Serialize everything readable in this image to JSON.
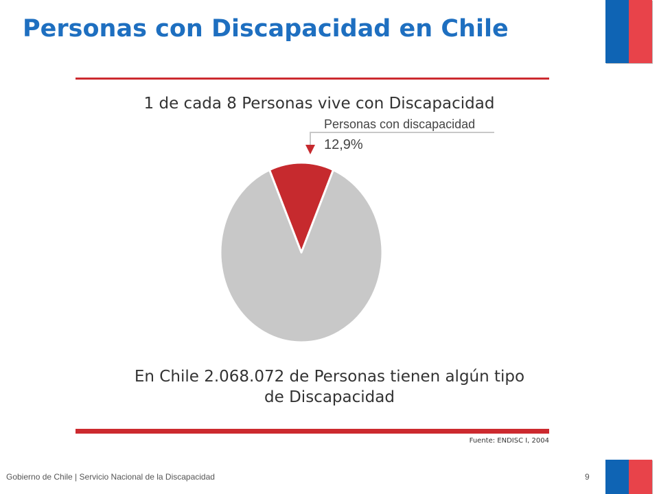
{
  "slide": {
    "title": "Personas con Discapacidad en Chile",
    "subtitle": "1 de cada 8 Personas vive con Discapacidad",
    "statement_line1": "En Chile 2.068.072 de Personas  tienen algún tipo",
    "statement_line2": "de Discapacidad",
    "source": "Fuente: ENDISC I, 2004",
    "footer": "Gobierno de Chile | Servicio Nacional de la Discapacidad",
    "page_number": "9"
  },
  "colors": {
    "title": "#1e6fc0",
    "accent_red": "#cc2a2f",
    "flag_blue": "#0f64b4",
    "flag_red": "#e8434a",
    "pie_highlight": "#c62a2e",
    "pie_rest": "#c8c8c8"
  },
  "chart_data": {
    "type": "pie",
    "slices": [
      {
        "label": "Personas con discapacidad",
        "value": 12.9,
        "value_label": "12,9%",
        "color": "#c62a2e"
      },
      {
        "label": "",
        "value": 87.1,
        "color": "#c8c8c8"
      }
    ],
    "annotation": {
      "text_line1": "Personas con discapacidad",
      "text_line2": "12,9%"
    }
  }
}
